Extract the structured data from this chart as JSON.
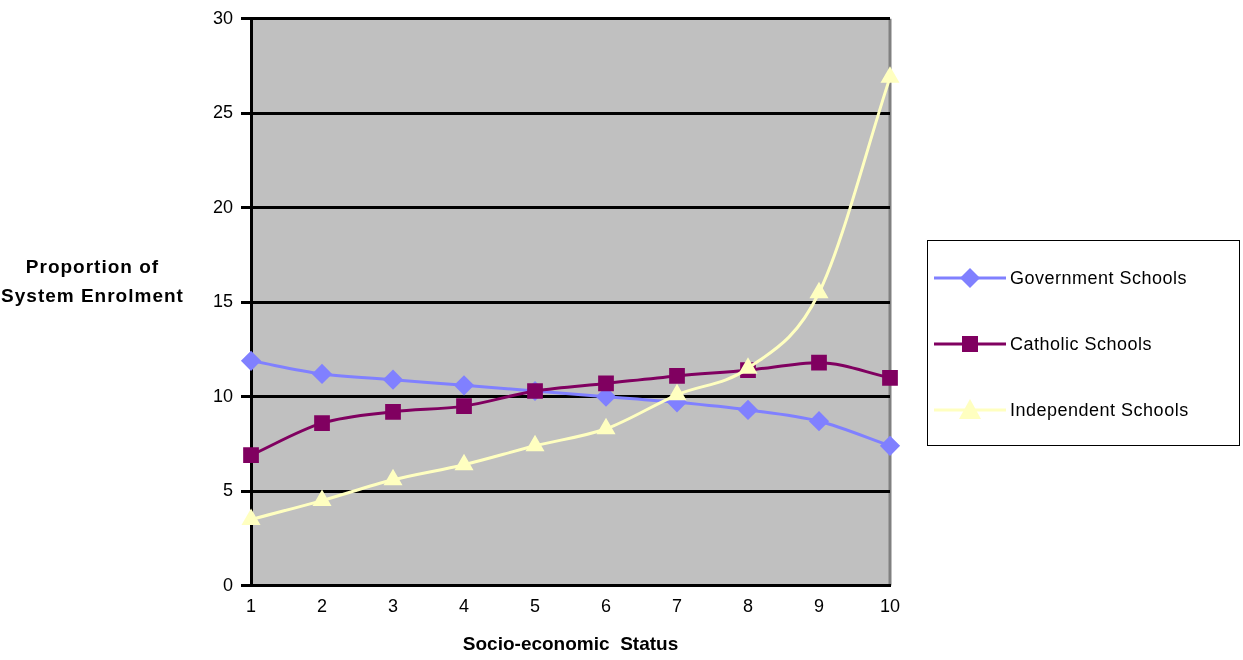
{
  "chart_data": {
    "type": "line",
    "xlabel": "Socio-economic  Status",
    "ylabel": "Proportion of System Enrolment",
    "categories": [
      "1",
      "2",
      "3",
      "4",
      "5",
      "6",
      "7",
      "8",
      "9",
      "10"
    ],
    "series": [
      {
        "name": "Government Schools",
        "color": "#8080ff",
        "marker": "diamond",
        "values": [
          11.9,
          11.2,
          10.9,
          10.6,
          10.3,
          10.0,
          9.7,
          9.3,
          8.7,
          7.4
        ]
      },
      {
        "name": "Catholic Schools",
        "color": "#800060",
        "marker": "square",
        "values": [
          6.9,
          8.6,
          9.2,
          9.5,
          10.3,
          10.7,
          11.1,
          11.4,
          11.8,
          11.0
        ]
      },
      {
        "name": "Independent Schools",
        "color": "#ffffc0",
        "marker": "triangle",
        "values": [
          3.5,
          4.5,
          5.6,
          6.4,
          7.4,
          8.3,
          10.1,
          11.5,
          15.5,
          26.9
        ]
      }
    ],
    "ylim": [
      0,
      30
    ],
    "yticks": [
      0,
      5,
      10,
      15,
      20,
      25,
      30
    ],
    "grid": "y",
    "legend": "right"
  }
}
